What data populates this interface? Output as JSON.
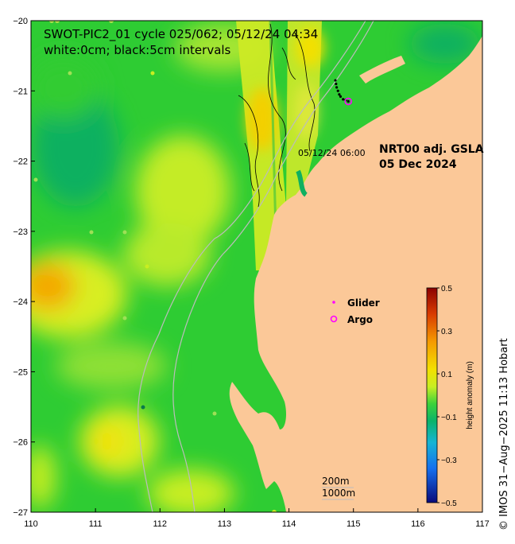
{
  "title": {
    "line1": "SWOT-PIC2_01 cycle 025/062; 05/12/24 04:34",
    "line2": "white:0cm; black:5cm intervals"
  },
  "product": {
    "line1": "NRT00 adj. GSLA",
    "line2": "05 Dec 2024"
  },
  "track_time_label": "05/12/24 06:00",
  "legend": {
    "glider_label": "Glider",
    "argo_label": "Argo",
    "glider_color": "#ff00ff",
    "argo_color": "#ff00ff"
  },
  "isobaths": {
    "label_200": "200m",
    "label_1000": "1000m"
  },
  "colorbar": {
    "label": "height anomaly (m)",
    "ticks": [
      "0.5",
      "0.3",
      "0.1",
      "−0.1",
      "−0.3",
      "−0.5"
    ],
    "tick_values": [
      0.5,
      0.3,
      0.1,
      -0.1,
      -0.3,
      -0.5
    ],
    "range": [
      -0.5,
      0.5
    ]
  },
  "credit": "© IMOS 31−Aug−2025 11:13 Hobart",
  "colors": {
    "land": "#fbc898",
    "ocean_base": "#2ecc33",
    "high_anomaly": "#f4a800",
    "moderate_anomaly": "#d8ee20",
    "low_anomaly": "#0fb060"
  },
  "chart_data": {
    "type": "heatmap",
    "x": {
      "label": "",
      "lim": [
        110,
        117
      ],
      "ticks": [
        "110",
        "111",
        "112",
        "113",
        "114",
        "115",
        "116",
        "117"
      ]
    },
    "y": {
      "label": "",
      "lim": [
        -27,
        -20
      ],
      "ticks": [
        "−20",
        "−21",
        "−22",
        "−23",
        "−24",
        "−25",
        "−26",
        "−27"
      ]
    },
    "glider_track": [
      [
        114.72,
        -20.85
      ],
      [
        114.73,
        -20.9
      ],
      [
        114.74,
        -20.95
      ],
      [
        114.76,
        -21.0
      ],
      [
        114.78,
        -21.05
      ],
      [
        114.8,
        -21.08
      ],
      [
        114.84,
        -21.12
      ],
      [
        114.88,
        -21.13
      ],
      [
        114.92,
        -21.15
      ]
    ],
    "argo_floats": [
      [
        114.92,
        -21.15
      ]
    ]
  }
}
